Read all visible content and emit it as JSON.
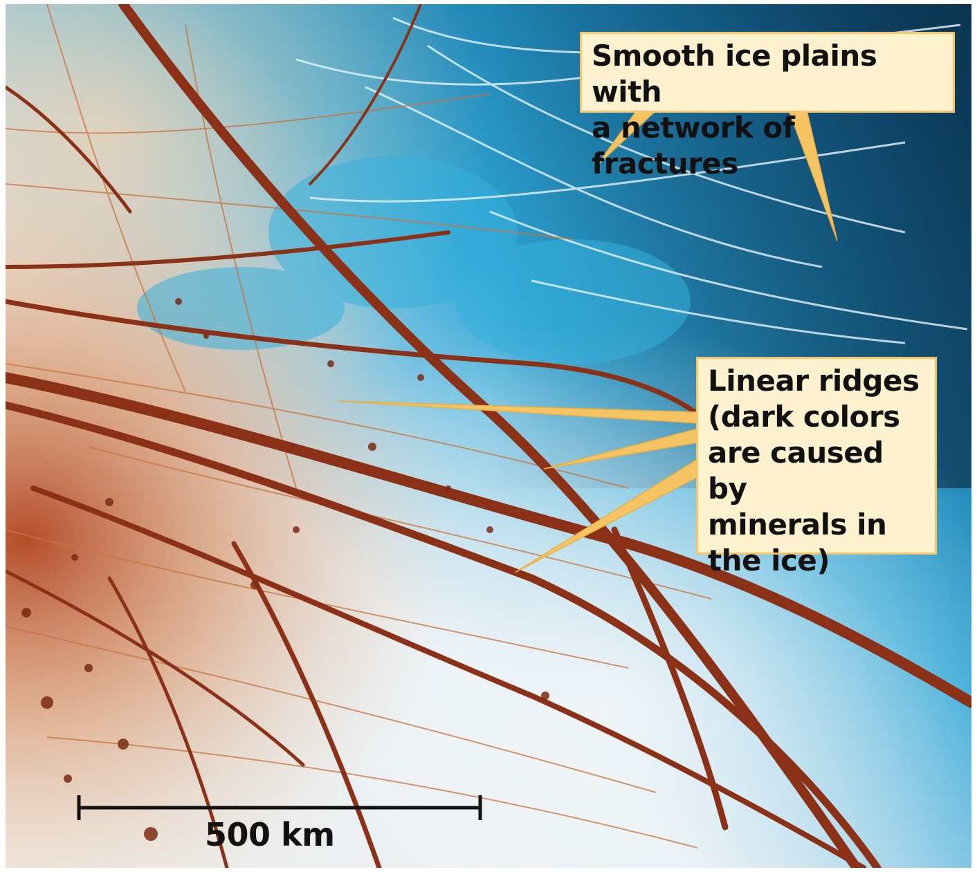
{
  "annotations": {
    "smooth_ice": "Smooth ice plains with\na network of fractures",
    "linear_ridges": "Linear ridges\n(dark colors\nare caused by\nminerals in\nthe ice)"
  },
  "scale_bar": {
    "label": "500 km"
  },
  "colors": {
    "callout_fill": "#fdf1cf",
    "callout_border": "#f4c56a",
    "pointer": "#f6c463",
    "ridge": "#8a3117",
    "ice_blue": "#1f9ccf",
    "ice_white": "#eef4f8"
  }
}
